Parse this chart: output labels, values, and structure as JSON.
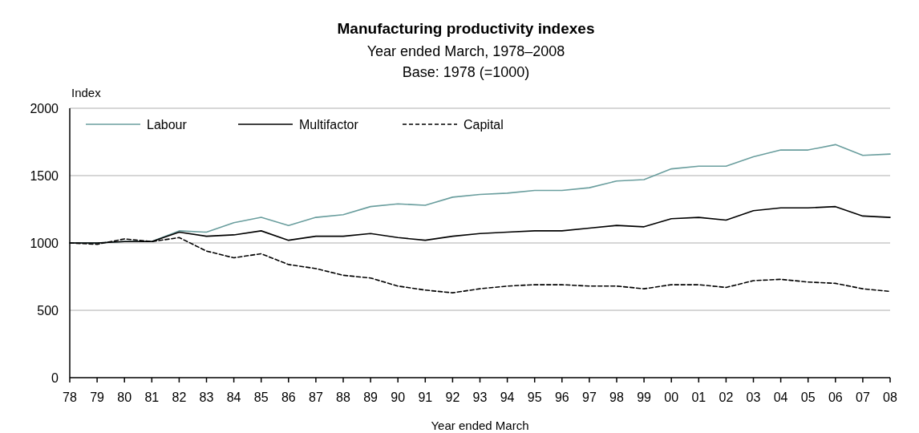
{
  "chart_data": {
    "type": "line",
    "title": "Manufacturing productivity indexes",
    "subtitle": "Year ended March, 1978–2008\nBase: 1978 (=1000)",
    "xlabel": "Year ended March",
    "ylabel": "Index",
    "categories": [
      "78",
      "79",
      "80",
      "81",
      "82",
      "83",
      "84",
      "85",
      "86",
      "87",
      "88",
      "89",
      "90",
      "91",
      "92",
      "93",
      "94",
      "95",
      "96",
      "97",
      "98",
      "99",
      "00",
      "01",
      "02",
      "03",
      "04",
      "05",
      "06",
      "07",
      "08"
    ],
    "series": [
      {
        "name": "Labour",
        "color": "#6a9e9e",
        "line_style": "solid",
        "values": [
          1000,
          1000,
          1010,
          1010,
          1090,
          1080,
          1150,
          1190,
          1130,
          1190,
          1210,
          1270,
          1290,
          1280,
          1340,
          1360,
          1370,
          1390,
          1390,
          1410,
          1460,
          1470,
          1550,
          1570,
          1570,
          1640,
          1690,
          1690,
          1730,
          1650,
          1660
        ]
      },
      {
        "name": "Multifactor",
        "color": "#000000",
        "line_style": "solid",
        "values": [
          1000,
          1000,
          1010,
          1010,
          1080,
          1050,
          1060,
          1090,
          1020,
          1050,
          1050,
          1070,
          1040,
          1020,
          1050,
          1070,
          1080,
          1090,
          1090,
          1110,
          1130,
          1120,
          1180,
          1190,
          1170,
          1240,
          1260,
          1260,
          1270,
          1200,
          1190
        ]
      },
      {
        "name": "Capital",
        "color": "#000000",
        "line_style": "dashed",
        "values": [
          1000,
          990,
          1030,
          1010,
          1040,
          940,
          890,
          920,
          840,
          810,
          760,
          740,
          680,
          650,
          630,
          660,
          680,
          690,
          690,
          680,
          680,
          660,
          690,
          690,
          670,
          720,
          730,
          710,
          700,
          660,
          640
        ]
      }
    ],
    "ylim": [
      0,
      2000
    ],
    "yticks": [
      0,
      500,
      1000,
      1500,
      2000
    ],
    "grid": "y",
    "legend": "top left",
    "marker": "none"
  }
}
